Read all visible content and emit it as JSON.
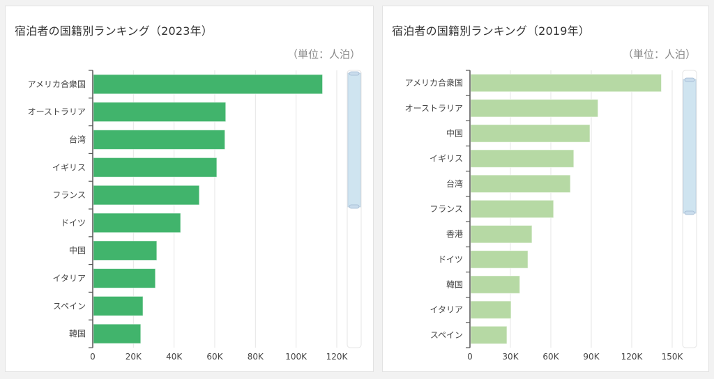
{
  "chart_data": [
    {
      "type": "bar",
      "orientation": "horizontal",
      "title": "宿泊者の国籍別ランキング（2023年）",
      "unit_label": "（単位：人泊）",
      "categories": [
        "アメリカ合衆国",
        "オーストラリア",
        "台湾",
        "イギリス",
        "フランス",
        "ドイツ",
        "中国",
        "イタリア",
        "スペイン",
        "韓国"
      ],
      "values": [
        113000,
        65400,
        65000,
        61000,
        52400,
        43200,
        31500,
        30800,
        24700,
        23600
      ],
      "xlim": [
        0,
        120000
      ],
      "xticks": [
        0,
        20000,
        40000,
        60000,
        80000,
        100000,
        120000
      ],
      "xtick_labels": [
        "0",
        "20K",
        "40K",
        "60K",
        "80K",
        "100K",
        "120K"
      ],
      "bar_color": "#41b46c",
      "grid": true,
      "xlabel": "",
      "ylabel": ""
    },
    {
      "type": "bar",
      "orientation": "horizontal",
      "title": "宿泊者の国籍別ランキング（2019年）",
      "unit_label": "（単位：人泊）",
      "categories": [
        "アメリカ合衆国",
        "オーストラリア",
        "中国",
        "イギリス",
        "台湾",
        "フランス",
        "香港",
        "ドイツ",
        "韓国",
        "イタリア",
        "スペイン"
      ],
      "values": [
        142000,
        95000,
        89000,
        77000,
        74500,
        62000,
        46000,
        43000,
        37000,
        30500,
        27400
      ],
      "xlim": [
        0,
        150000
      ],
      "xticks": [
        0,
        30000,
        60000,
        90000,
        120000,
        150000
      ],
      "xtick_labels": [
        "0",
        "30K",
        "60K",
        "90K",
        "120K",
        "150K"
      ],
      "bar_color": "#b6d9a4",
      "grid": true,
      "xlabel": "",
      "ylabel": ""
    }
  ],
  "scrollbar_color": "#cfe4f0"
}
